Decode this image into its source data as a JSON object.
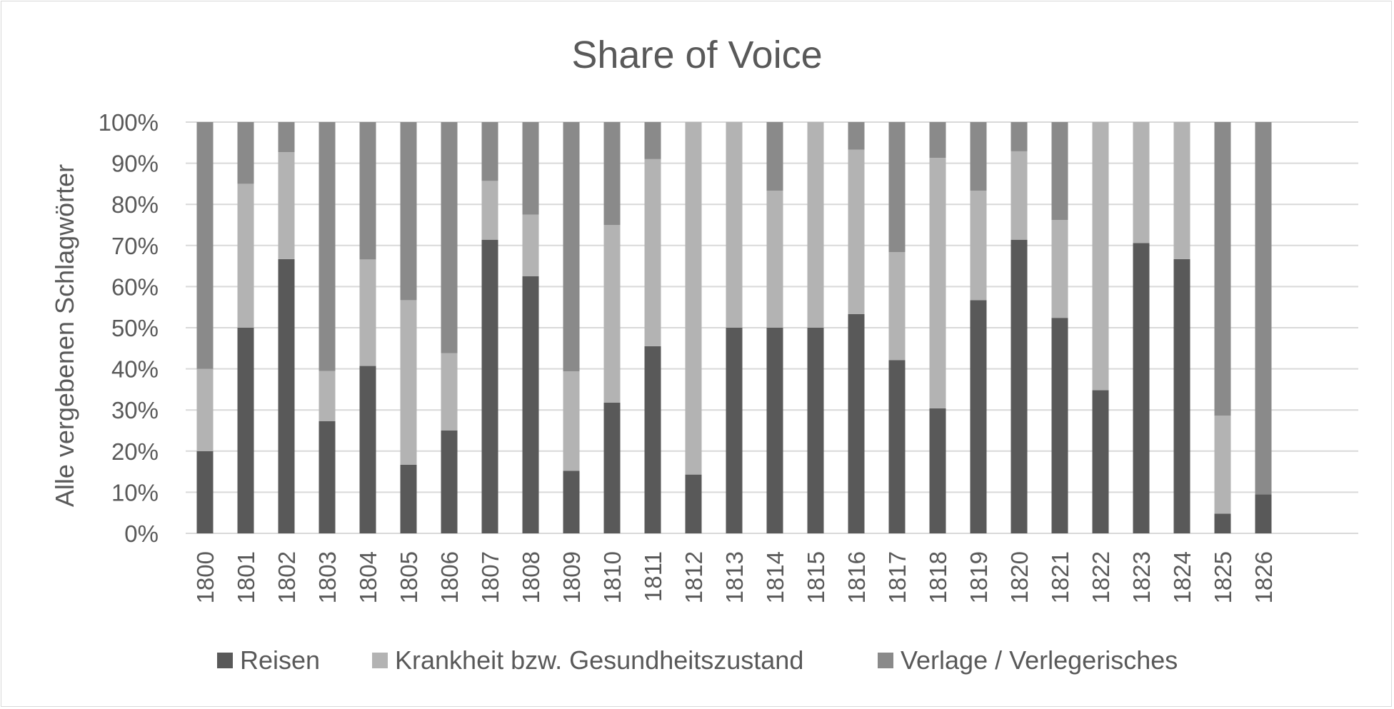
{
  "chart_data": {
    "type": "bar",
    "stacked": "percent",
    "title": "Share of Voice",
    "xlabel": "",
    "ylabel": "Alle vergebenen Schlagwörter",
    "ylim": [
      0,
      100
    ],
    "yticks": [
      "0%",
      "10%",
      "20%",
      "30%",
      "40%",
      "50%",
      "60%",
      "70%",
      "80%",
      "90%",
      "100%"
    ],
    "grid": true,
    "legend_position": "bottom",
    "categories": [
      "1800",
      "1801",
      "1802",
      "1803",
      "1804",
      "1805",
      "1806",
      "1807",
      "1808",
      "1809",
      "1810",
      "1811",
      "1812",
      "1813",
      "1814",
      "1815",
      "1816",
      "1817",
      "1818",
      "1819",
      "1820",
      "1821",
      "1822",
      "1823",
      "1824",
      "1825",
      "1826"
    ],
    "series": [
      {
        "name": "Reisen",
        "color": "#595959",
        "values": [
          20,
          50,
          66.7,
          27.3,
          40.7,
          16.7,
          25,
          71.4,
          62.5,
          15.2,
          31.8,
          45.5,
          14.3,
          50,
          50,
          50,
          53.3,
          42.1,
          30.4,
          56.7,
          71.4,
          52.4,
          34.8,
          70.6,
          66.7,
          4.8,
          9.5
        ]
      },
      {
        "name": "Krankheit bzw. Gesundheitszustand",
        "color": "#b3b3b3",
        "values": [
          20,
          35,
          26,
          12.2,
          25.9,
          40,
          18.8,
          14.3,
          15,
          24.2,
          43.2,
          45.5,
          85.7,
          50,
          33.3,
          50,
          40,
          26.3,
          60.9,
          26.6,
          21.5,
          23.8,
          65.2,
          29.4,
          33.3,
          23.8,
          0
        ]
      },
      {
        "name": "Verlage / Verlegerisches",
        "color": "#8a8a8a",
        "values": [
          60,
          15,
          7.3,
          60.5,
          33.4,
          43.3,
          56.2,
          14.3,
          22.5,
          60.6,
          25,
          9,
          0,
          0,
          16.7,
          0,
          6.7,
          31.6,
          8.7,
          16.7,
          7.1,
          23.8,
          0,
          0,
          0,
          71.4,
          90.5
        ]
      }
    ]
  }
}
